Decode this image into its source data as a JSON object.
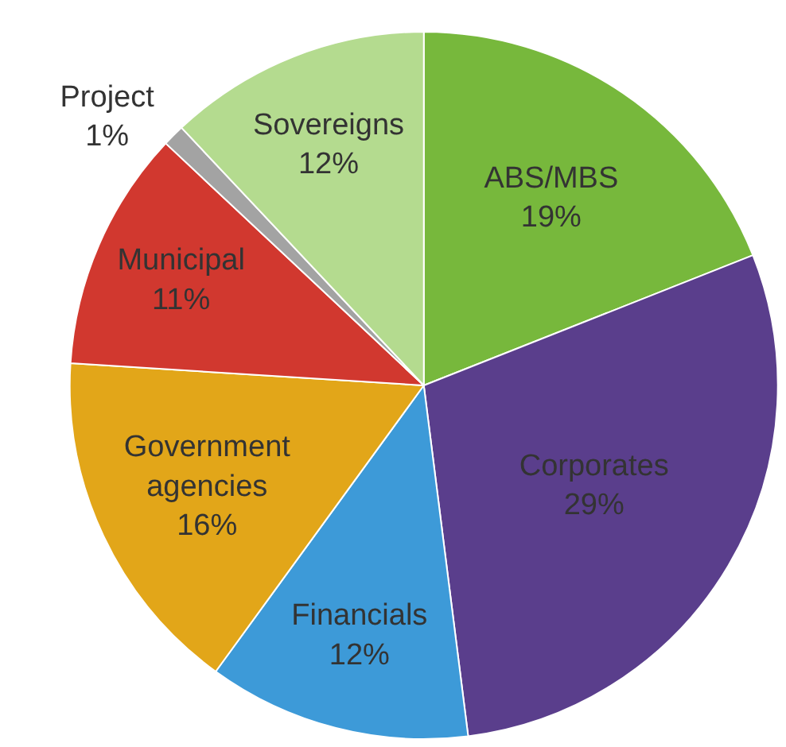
{
  "chart_data": {
    "type": "pie",
    "categories": [
      "ABS/MBS",
      "Corporates",
      "Financials",
      "Government agencies",
      "Municipal",
      "Project",
      "Sovereigns"
    ],
    "values": [
      19,
      29,
      12,
      16,
      11,
      1,
      12
    ],
    "colors": [
      "#77b83c",
      "#5a3e8c",
      "#3d9ad8",
      "#e2a619",
      "#d1382f",
      "#a3a3a3",
      "#b4db8f"
    ],
    "value_labels": [
      "19%",
      "29%",
      "12%",
      "16%",
      "11%",
      "1%",
      "12%"
    ]
  }
}
